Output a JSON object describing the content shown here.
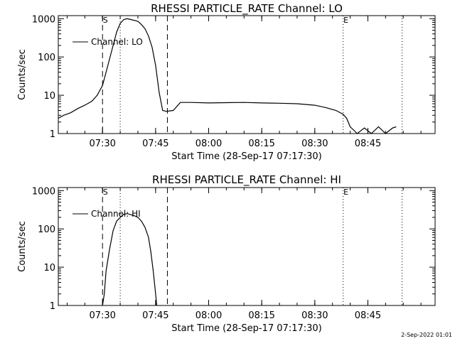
{
  "timestamp": "2-Sep-2022 01:01",
  "chart_data": [
    {
      "type": "line",
      "title": "RHESSI PARTICLE_RATE Channel: LO",
      "xlabel": "Start Time (28-Sep-17 07:17:30)",
      "ylabel": "Counts/sec",
      "yscale": "log",
      "ylim": [
        1,
        1200
      ],
      "xlim": [
        "07:17:30",
        "09:04:00"
      ],
      "xticks": [
        "07:30",
        "07:45",
        "08:00",
        "08:15",
        "08:30",
        "08:45"
      ],
      "yticks": [
        "1",
        "10",
        "100",
        "1000"
      ],
      "legend": {
        "entries": [
          "Channel: LO"
        ],
        "position": "upper-left"
      },
      "markers": [
        {
          "label": "S",
          "x": "07:30:00",
          "style": "dashed"
        },
        {
          "label": "",
          "x": "07:35:00",
          "style": "dotted"
        },
        {
          "label": "",
          "x": "07:48:20",
          "style": "dashed"
        },
        {
          "label": "E",
          "x": "08:38:00",
          "style": "dotted"
        },
        {
          "label": "",
          "x": "08:54:40",
          "style": "dotted"
        }
      ],
      "series": [
        {
          "name": "Channel: LO",
          "x": [
            "07:17:30",
            "07:19:00",
            "07:21:00",
            "07:23:00",
            "07:25:00",
            "07:27:00",
            "07:28:30",
            "07:30:00",
            "07:31:00",
            "07:32:00",
            "07:33:00",
            "07:34:00",
            "07:35:00",
            "07:36:00",
            "07:37:00",
            "07:38:00",
            "07:39:00",
            "07:40:00",
            "07:41:00",
            "07:42:00",
            "07:43:00",
            "07:44:00",
            "07:45:00",
            "07:46:00",
            "07:47:00",
            "07:48:00",
            "07:49:00",
            "07:50:00",
            "07:52:00",
            "07:55:00",
            "08:00:00",
            "08:05:00",
            "08:10:00",
            "08:15:00",
            "08:20:00",
            "08:25:00",
            "08:30:00",
            "08:33:00",
            "08:36:00",
            "08:38:00",
            "08:39:00",
            "08:40:00",
            "08:42:00",
            "08:44:00",
            "08:46:00",
            "08:48:00",
            "08:50:00",
            "08:52:00",
            "08:53:00"
          ],
          "values": [
            2.5,
            3,
            3.5,
            4.5,
            5.5,
            7,
            10,
            18,
            40,
            90,
            200,
            450,
            750,
            950,
            1000,
            950,
            900,
            850,
            700,
            550,
            350,
            180,
            60,
            12,
            4,
            3.8,
            3.9,
            4,
            6.5,
            6.5,
            6.3,
            6.4,
            6.5,
            6.3,
            6.2,
            6.0,
            5.5,
            4.8,
            4.0,
            3.2,
            2.5,
            1.5,
            1,
            1.4,
            1,
            1.5,
            1,
            1.4,
            1.5
          ]
        }
      ]
    },
    {
      "type": "line",
      "title": "RHESSI PARTICLE_RATE Channel: HI",
      "xlabel": "Start Time (28-Sep-17 07:17:30)",
      "ylabel": "Counts/sec",
      "yscale": "log",
      "ylim": [
        1,
        1200
      ],
      "xlim": [
        "07:17:30",
        "09:04:00"
      ],
      "xticks": [
        "07:30",
        "07:45",
        "08:00",
        "08:15",
        "08:30",
        "08:45"
      ],
      "yticks": [
        "1",
        "10",
        "100",
        "1000"
      ],
      "legend": {
        "entries": [
          "Channel: HI"
        ],
        "position": "upper-left"
      },
      "markers": [
        {
          "label": "S",
          "x": "07:30:00",
          "style": "dashed"
        },
        {
          "label": "",
          "x": "07:35:00",
          "style": "dotted"
        },
        {
          "label": "",
          "x": "07:48:20",
          "style": "dashed"
        },
        {
          "label": "E",
          "x": "08:38:00",
          "style": "dotted"
        },
        {
          "label": "",
          "x": "08:54:40",
          "style": "dotted"
        }
      ],
      "series": [
        {
          "name": "Channel: HI",
          "x": [
            "07:30:00",
            "07:30:30",
            "07:31:00",
            "07:32:00",
            "07:33:00",
            "07:34:00",
            "07:35:00",
            "07:36:00",
            "07:37:00",
            "07:38:00",
            "07:39:00",
            "07:40:00",
            "07:41:00",
            "07:42:00",
            "07:43:00",
            "07:43:40",
            "07:44:20",
            "07:45:00",
            "07:45:20"
          ],
          "values": [
            1,
            2,
            8,
            30,
            90,
            160,
            200,
            240,
            250,
            235,
            220,
            200,
            160,
            110,
            60,
            25,
            8,
            2,
            1
          ]
        }
      ]
    }
  ]
}
